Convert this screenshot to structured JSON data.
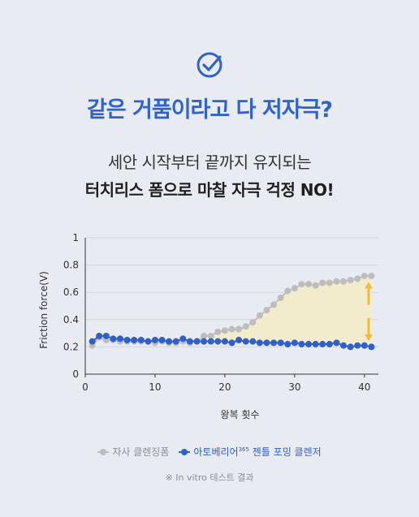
{
  "headline": "같은 거품이라고 다 저자극?",
  "subline1": "세안 시작부터 끝까지 유지되는",
  "subline2": "터치리스 폼으로 마찰 자극 걱정 NO!",
  "icon": "check-circle-icon",
  "colors": {
    "accent": "#2f63c9",
    "competitor": "#bdbdbd",
    "product": "#2f5fc7",
    "fill": "#f3ecc9",
    "arrow": "#f3bb3a"
  },
  "legend": {
    "competitor": "자사 클렌징폼",
    "product_prefix": "아토베리어",
    "product_sup": "365",
    "product_suffix": " 젠틀 포밍 클렌저"
  },
  "footnote": "※ In vitro 테스트 결과",
  "chart_data": {
    "type": "line",
    "title": "",
    "xlabel": "왕복 횟수",
    "ylabel": "Friction force(V)",
    "xlim": [
      0,
      42
    ],
    "ylim": [
      0,
      1
    ],
    "xticks": [
      "0",
      "10",
      "20",
      "30",
      "40"
    ],
    "xtick_values": [
      0,
      10,
      20,
      30,
      40
    ],
    "yticks": [
      "0",
      "0.2",
      "0.4",
      "0.6",
      "0.8",
      "1"
    ],
    "ytick_values": [
      0,
      0.2,
      0.4,
      0.6,
      0.8,
      1
    ],
    "grid": "horizontal",
    "legend_position": "bottom",
    "x": [
      1,
      2,
      3,
      4,
      5,
      6,
      7,
      8,
      9,
      10,
      11,
      12,
      13,
      14,
      15,
      16,
      17,
      18,
      19,
      20,
      21,
      22,
      23,
      24,
      25,
      26,
      27,
      28,
      29,
      30,
      31,
      32,
      33,
      34,
      35,
      36,
      37,
      38,
      39,
      40,
      41
    ],
    "series": [
      {
        "name": "자사 클렌징폼",
        "values": [
          0.21,
          0.27,
          0.25,
          0.25,
          0.24,
          0.24,
          0.24,
          0.24,
          0.24,
          0.23,
          0.24,
          0.23,
          0.23,
          0.24,
          0.23,
          0.24,
          0.28,
          0.28,
          0.31,
          0.32,
          0.33,
          0.33,
          0.35,
          0.38,
          0.43,
          0.47,
          0.51,
          0.56,
          0.61,
          0.63,
          0.66,
          0.66,
          0.65,
          0.67,
          0.67,
          0.68,
          0.68,
          0.69,
          0.7,
          0.72,
          0.72
        ]
      },
      {
        "name": "아토베리어365 젠틀 포밍 클렌저",
        "values": [
          0.24,
          0.28,
          0.28,
          0.26,
          0.26,
          0.25,
          0.25,
          0.25,
          0.24,
          0.25,
          0.25,
          0.24,
          0.24,
          0.26,
          0.24,
          0.24,
          0.24,
          0.24,
          0.24,
          0.24,
          0.23,
          0.25,
          0.24,
          0.24,
          0.23,
          0.23,
          0.23,
          0.23,
          0.22,
          0.23,
          0.22,
          0.22,
          0.22,
          0.22,
          0.22,
          0.23,
          0.21,
          0.2,
          0.21,
          0.21,
          0.2
        ]
      }
    ]
  }
}
